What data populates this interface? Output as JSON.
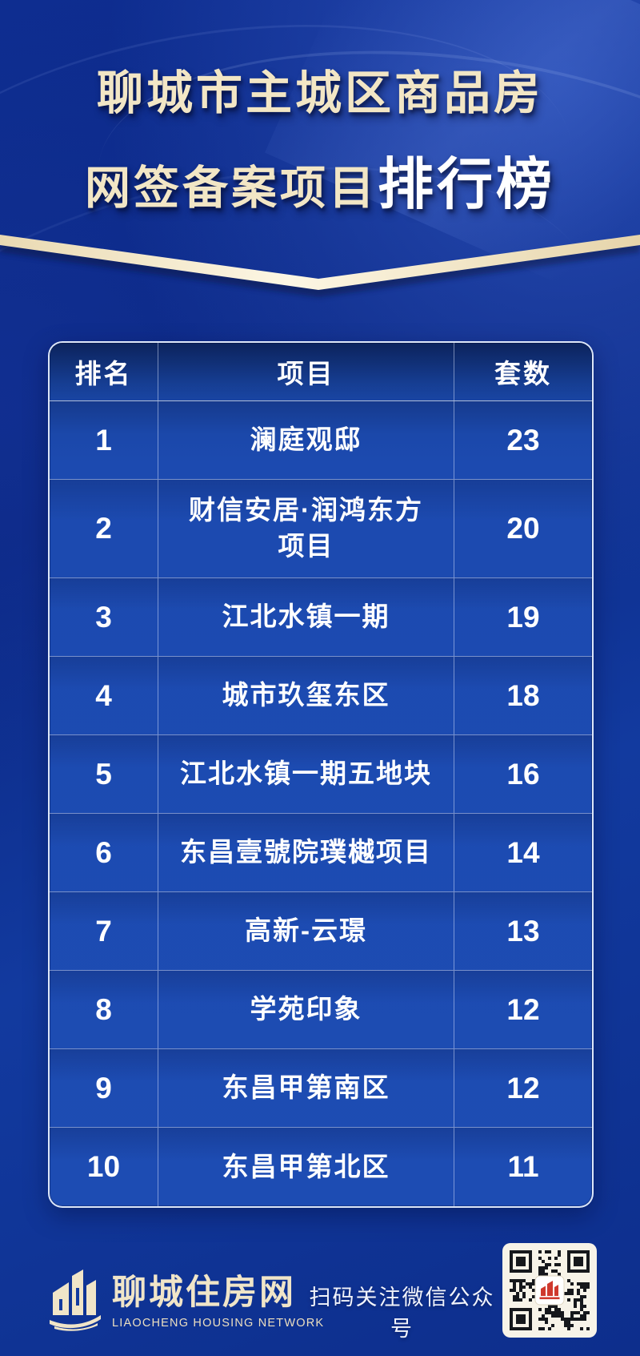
{
  "poster_title": {
    "line1": "聊城市主城区商品房",
    "line2_main": "网签备案项目",
    "line2_accent": "排行榜"
  },
  "table": {
    "headers": {
      "rank": "排名",
      "project": "项目",
      "count": "套数"
    },
    "rows": [
      {
        "rank": "1",
        "project": "澜庭观邸",
        "count": "23"
      },
      {
        "rank": "2",
        "project": "财信安居·润鸿东方项目",
        "count": "20"
      },
      {
        "rank": "3",
        "project": "江北水镇一期",
        "count": "19"
      },
      {
        "rank": "4",
        "project": "城市玖玺东区",
        "count": "18"
      },
      {
        "rank": "5",
        "project": "江北水镇一期五地块",
        "count": "16"
      },
      {
        "rank": "6",
        "project": "东昌壹號院璞樾项目",
        "count": "14"
      },
      {
        "rank": "7",
        "project": "高新-云璟",
        "count": "13"
      },
      {
        "rank": "8",
        "project": "学苑印象",
        "count": "12"
      },
      {
        "rank": "9",
        "project": "东昌甲第南区",
        "count": "12"
      },
      {
        "rank": "10",
        "project": "东昌甲第北区",
        "count": "11"
      }
    ]
  },
  "footer": {
    "logo_name": "聊城住房网",
    "logo_subtitle": "LIAOCHENG HOUSING NETWORK",
    "qr_caption": "扫码关注微信公众号"
  },
  "icons": {
    "logo_mark": "building-logo-icon",
    "qr": "qr-code",
    "qr_center": "building-icon"
  },
  "colors": {
    "background_blue": "#0d2e8c",
    "table_blue": "#1d4cb3",
    "cream_accent": "#f2e6c5",
    "white_text": "#ffffff",
    "qr_background": "#f7f3e8",
    "qr_red": "#cf392d"
  },
  "chart_data": {
    "type": "table",
    "title": "聊城市主城区商品房网签备案项目排行榜",
    "columns": [
      "排名",
      "项目",
      "套数"
    ],
    "rows": [
      [
        1,
        "澜庭观邸",
        23
      ],
      [
        2,
        "财信安居·润鸿东方项目",
        20
      ],
      [
        3,
        "江北水镇一期",
        19
      ],
      [
        4,
        "城市玖玺东区",
        18
      ],
      [
        5,
        "江北水镇一期五地块",
        16
      ],
      [
        6,
        "东昌壹號院璞樾项目",
        14
      ],
      [
        7,
        "高新-云璟",
        13
      ],
      [
        8,
        "学苑印象",
        12
      ],
      [
        9,
        "东昌甲第南区",
        12
      ],
      [
        10,
        "东昌甲第北区",
        11
      ]
    ]
  }
}
